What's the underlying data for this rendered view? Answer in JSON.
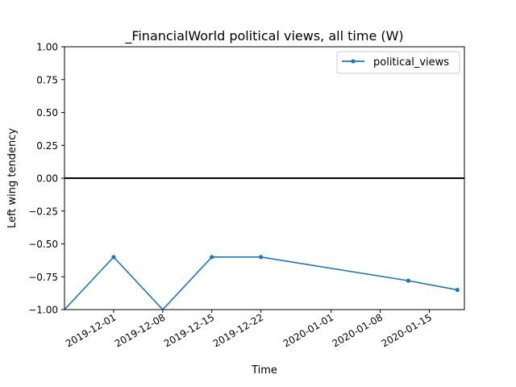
{
  "chart_data": {
    "type": "line",
    "title": "_FinancialWorld political views, all time (W)",
    "xlabel": "Time",
    "ylabel": "Left wing tendency",
    "xlim": [
      "2019-11-24",
      "2020-01-20"
    ],
    "ylim": [
      -1.0,
      1.0
    ],
    "x_ticks": [
      "2019-12-01",
      "2019-12-08",
      "2019-12-15",
      "2019-12-22",
      "2020-01-01",
      "2020-01-08",
      "2020-01-15"
    ],
    "y_ticks": [
      "1.00",
      "0.75",
      "0.50",
      "0.25",
      "0.00",
      "−0.25",
      "−0.50",
      "−0.75",
      "−1.00"
    ],
    "y_tick_values": [
      1.0,
      0.75,
      0.5,
      0.25,
      0.0,
      -0.25,
      -0.5,
      -0.75,
      -1.0
    ],
    "reference_line": 0.0,
    "grid": false,
    "legend": {
      "location": "top-right",
      "entries": [
        "political_views"
      ]
    },
    "series": [
      {
        "name": "political_views",
        "color": "#1f77b4",
        "x": [
          "2019-11-24",
          "2019-12-01",
          "2019-12-08",
          "2019-12-15",
          "2019-12-22",
          "2020-01-12",
          "2020-01-19"
        ],
        "y": [
          -1.0,
          -0.6,
          -1.0,
          -0.6,
          -0.6,
          -0.78,
          -0.85
        ]
      }
    ]
  }
}
